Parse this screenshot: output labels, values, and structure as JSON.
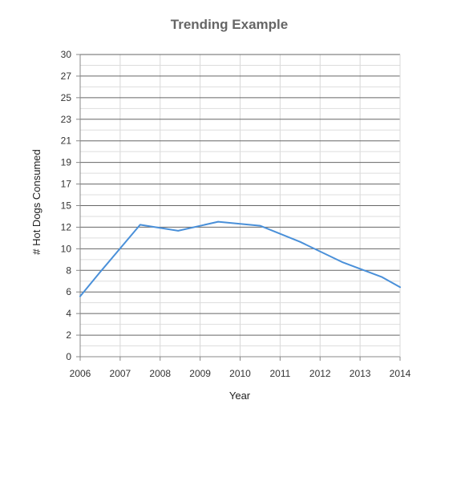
{
  "chart_data": {
    "type": "line",
    "title": "Trending Example",
    "xlabel": "Year",
    "ylabel": "# Hot Dogs Consumed",
    "xlim": [
      2006,
      2014
    ],
    "ylim": [
      0,
      30
    ],
    "x_tick_labels": [
      "2006",
      "2007",
      "2008",
      "2009",
      "2010",
      "2011",
      "2012",
      "2013",
      "2014"
    ],
    "y_tick_labels": [
      "0",
      "2",
      "4",
      "6",
      "8",
      "10",
      "12",
      "15",
      "17",
      "19",
      "21",
      "23",
      "25",
      "27",
      "30"
    ],
    "grid": true,
    "series": [
      {
        "color": "#4a90d9",
        "x": [
          2006,
          2006.5,
          2007.5,
          2008.45,
          2009.45,
          2010.5,
          2011.5,
          2012.55,
          2013.55,
          2014
        ],
        "y": [
          6,
          8.4,
          13.1,
          12.5,
          13.4,
          13.0,
          11.4,
          9.4,
          7.9,
          6.9
        ]
      }
    ],
    "colors": {
      "major_grid": "#666666",
      "minor_grid": "#dddddd",
      "vertical_grid": "#d8d8d8",
      "axis": "#888888"
    }
  }
}
